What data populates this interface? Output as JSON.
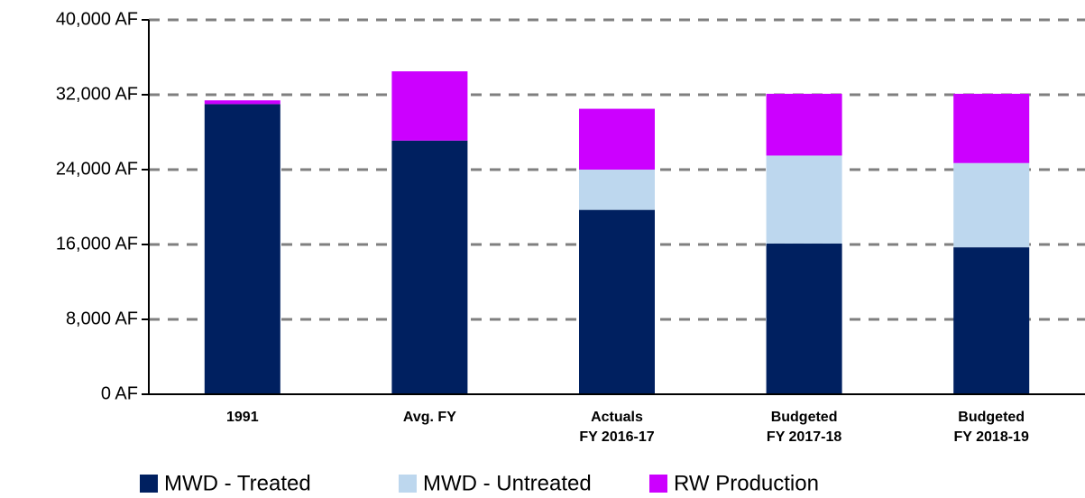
{
  "chart_data": {
    "type": "stacked_bar",
    "categories": [
      "1991",
      "Avg. FY",
      "Actuals\nFY 2016-17",
      "Budgeted\nFY 2017-18",
      "Budgeted\nFY 2018-19"
    ],
    "series": [
      {
        "name": "MWD - Treated",
        "color": "#002060",
        "values": [
          31000,
          27100,
          19700,
          16100,
          15700
        ]
      },
      {
        "name": "MWD - Untreated",
        "color": "#bdd7ee",
        "values": [
          0,
          0,
          4300,
          9400,
          9000
        ]
      },
      {
        "name": "RW Production",
        "color": "#cc00ff",
        "values": [
          400,
          7400,
          6500,
          6600,
          7400
        ]
      }
    ],
    "ylim": [
      0,
      40000
    ],
    "yticks": [
      {
        "value": 0,
        "label": "0 AF"
      },
      {
        "value": 8000,
        "label": "8,000 AF"
      },
      {
        "value": 16000,
        "label": "16,000 AF"
      },
      {
        "value": 24000,
        "label": "24,000 AF"
      },
      {
        "value": 32000,
        "label": "32,000 AF"
      },
      {
        "value": 40000,
        "label": "40,000 AF"
      }
    ],
    "grid": true
  }
}
